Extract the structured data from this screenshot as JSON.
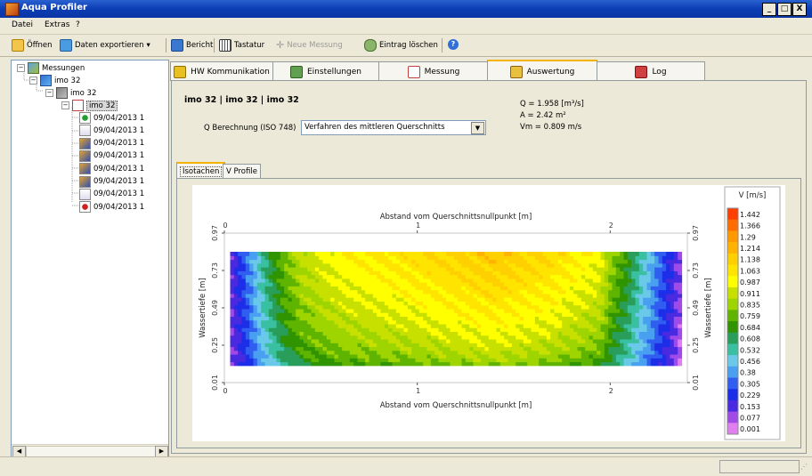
{
  "window": {
    "title": "Aqua Profiler",
    "minimize": "_",
    "maximize": "□",
    "close": "X"
  },
  "menu": [
    "Datei",
    "Extras",
    "?"
  ],
  "toolbar": {
    "open": "Öffnen",
    "export": "Daten exportieren",
    "export_arrow": "▾",
    "report": "Bericht",
    "keyboard": "Tastatur",
    "new_measurement": "Neue Messung",
    "delete_entry": "Eintrag löschen",
    "help": "?"
  },
  "tree": {
    "root": "Messungen",
    "level1": "imo 32",
    "level2": "imo 32",
    "level3": "imo 32",
    "entries": [
      {
        "label": "09/04/2013 1",
        "icon": "green-dot-icon"
      },
      {
        "label": "09/04/2013 1",
        "icon": "chart-doc-icon"
      },
      {
        "label": "09/04/2013 1",
        "icon": "probe-icon"
      },
      {
        "label": "09/04/2013 1",
        "icon": "probe-icon"
      },
      {
        "label": "09/04/2013 1",
        "icon": "probe-icon"
      },
      {
        "label": "09/04/2013 1",
        "icon": "probe-icon"
      },
      {
        "label": "09/04/2013 1",
        "icon": "chart-doc-icon"
      },
      {
        "label": "09/04/2013 1",
        "icon": "red-dot-icon"
      }
    ],
    "scroll_left": "◀",
    "scroll_right": "▶"
  },
  "tabs": [
    "HW Kommunikation",
    "Einstellungen",
    "Messung",
    "Auswertung",
    "Log"
  ],
  "active_tab": "Auswertung",
  "evaluation": {
    "heading": "imo 32 | imo 32 | imo 32",
    "q_label": "Q Berechnung (ISO 748)",
    "q_method": "Verfahren des mittleren Querschnitts",
    "dropdown_arrow": "▼",
    "q_value": "Q = 1.958 [m³/s]",
    "a_value": "A = 2.42 m²",
    "vm_value": "Vm = 0.809 m/s"
  },
  "subtabs": [
    "Isotachen",
    "V Profile"
  ],
  "chart_data": {
    "type": "heatmap",
    "title": "Abstand vom Querschnittsnullpunkt [m]",
    "xlabel": "Abstand vom Querschnittsnullpunkt [m]",
    "ylabel": "Wassertiefe [m]",
    "x_ticks": [
      "0",
      "1",
      "2"
    ],
    "x_tick_values": [
      0,
      1,
      2
    ],
    "xlim": [
      0,
      2.4
    ],
    "y_ticks": [
      "0.97",
      "0.73",
      "0.49",
      "0.25",
      "0.01"
    ],
    "y_tick_values": [
      0.97,
      0.73,
      0.49,
      0.25,
      0.01
    ],
    "ylim": [
      0.01,
      0.97
    ],
    "data_extent_x": [
      0.03,
      2.37
    ],
    "data_extent_y": [
      0.12,
      0.85
    ],
    "colorbar_title": "V [m/s]",
    "colorbar_levels": [
      "1.442",
      "1.366",
      "1.29",
      "1.214",
      "1.138",
      "1.063",
      "0.987",
      "0.911",
      "0.835",
      "0.759",
      "0.684",
      "0.608",
      "0.532",
      "0.456",
      "0.38",
      "0.305",
      "0.229",
      "0.153",
      "0.077",
      "0.001"
    ],
    "colorbar_colors": [
      "#ff3f00",
      "#ff6c00",
      "#ff9900",
      "#ffb300",
      "#ffd000",
      "#ffe400",
      "#ffff00",
      "#c8e000",
      "#9ed400",
      "#5fb400",
      "#2f9400",
      "#289e5a",
      "#38c0a0",
      "#6ac8e8",
      "#4aa0f0",
      "#2f5ef0",
      "#1c2ee8",
      "#4a2ae0",
      "#a04ae8",
      "#e080f0"
    ],
    "field_profile_x": [
      0.03,
      0.1,
      0.2,
      0.3,
      0.4,
      0.6,
      1.0,
      1.4,
      1.7,
      1.95,
      2.0,
      2.1,
      2.2,
      2.3,
      2.37
    ],
    "field_profile_v": [
      0.15,
      0.3,
      0.55,
      0.75,
      0.88,
      0.98,
      1.05,
      1.12,
      1.06,
      0.95,
      0.82,
      0.65,
      0.45,
      0.25,
      0.1
    ]
  },
  "statusbar": {
    "text": ""
  }
}
